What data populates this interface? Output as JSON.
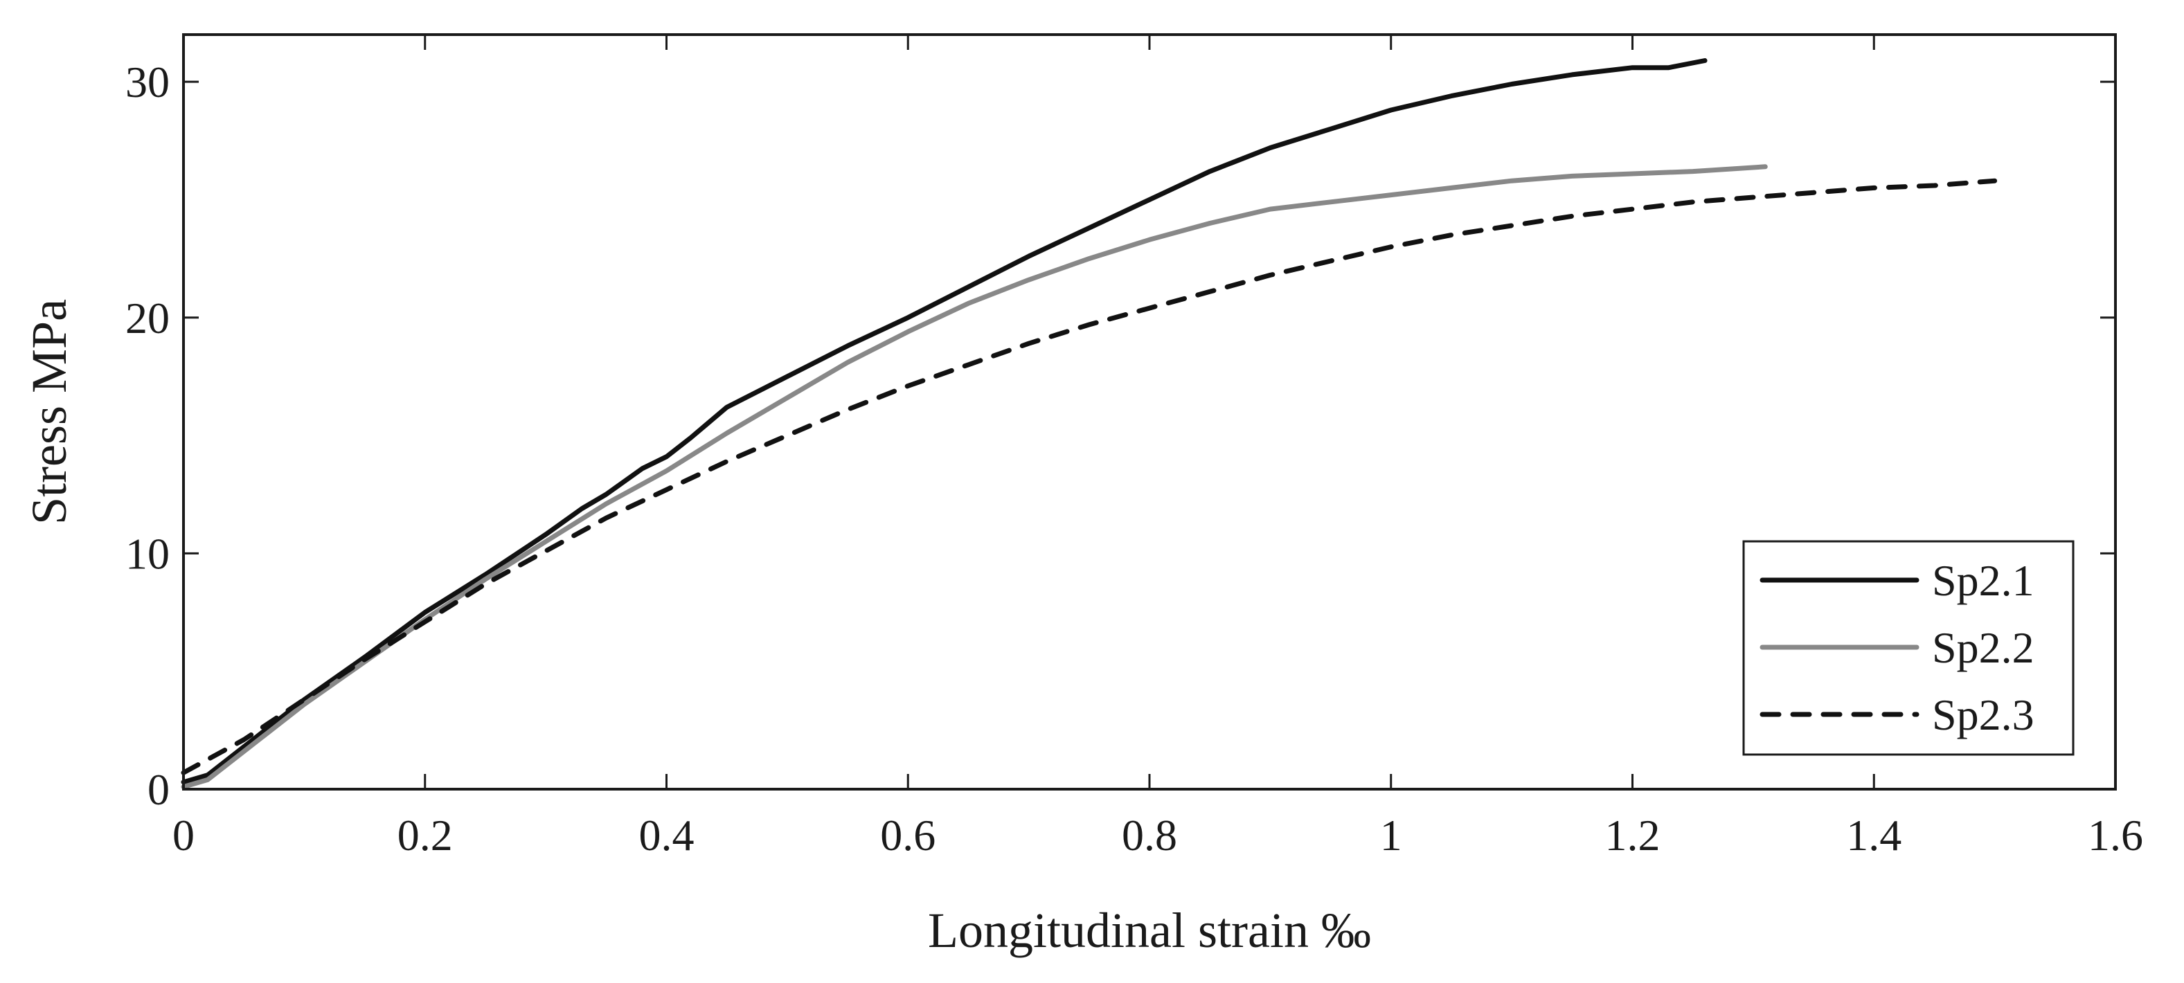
{
  "chart_data": {
    "type": "line",
    "title": "",
    "xlabel": "Longitudinal strain ‰",
    "ylabel": "Stress MPa",
    "xlim": [
      0,
      1.6
    ],
    "ylim": [
      0,
      32
    ],
    "xticks": [
      0,
      0.2,
      0.4,
      0.6,
      0.8,
      1,
      1.2,
      1.4,
      1.6
    ],
    "xtick_labels": [
      "0",
      "0.2",
      "0.4",
      "0.6",
      "0.8",
      "1",
      "1.2",
      "1.4",
      "1.6"
    ],
    "yticks": [
      0,
      10,
      20,
      30
    ],
    "ytick_labels": [
      "0",
      "10",
      "20",
      "30"
    ],
    "grid": false,
    "legend_position": "bottom-right",
    "series": [
      {
        "name": "Sp2.1",
        "color": "#111111",
        "dash": "solid",
        "x": [
          0,
          0.02,
          0.05,
          0.1,
          0.15,
          0.2,
          0.25,
          0.3,
          0.33,
          0.35,
          0.38,
          0.4,
          0.42,
          0.45,
          0.5,
          0.55,
          0.6,
          0.65,
          0.7,
          0.75,
          0.8,
          0.85,
          0.9,
          0.95,
          1.0,
          1.05,
          1.1,
          1.15,
          1.2,
          1.23,
          1.26
        ],
        "y": [
          0.3,
          0.6,
          1.8,
          3.8,
          5.6,
          7.5,
          9.1,
          10.8,
          11.9,
          12.5,
          13.6,
          14.1,
          14.9,
          16.2,
          17.5,
          18.8,
          20.0,
          21.3,
          22.6,
          23.8,
          25.0,
          26.2,
          27.2,
          28.0,
          28.8,
          29.4,
          29.9,
          30.3,
          30.6,
          30.6,
          30.9
        ]
      },
      {
        "name": "Sp2.2",
        "color": "#888888",
        "dash": "solid",
        "x": [
          0.0,
          0.02,
          0.05,
          0.1,
          0.15,
          0.2,
          0.25,
          0.3,
          0.35,
          0.4,
          0.45,
          0.5,
          0.55,
          0.6,
          0.65,
          0.7,
          0.75,
          0.8,
          0.85,
          0.9,
          0.95,
          1.0,
          1.05,
          1.1,
          1.15,
          1.2,
          1.25,
          1.31
        ],
        "y": [
          0.1,
          0.4,
          1.6,
          3.6,
          5.4,
          7.2,
          8.9,
          10.5,
          12.1,
          13.5,
          15.1,
          16.6,
          18.1,
          19.4,
          20.6,
          21.6,
          22.5,
          23.3,
          24.0,
          24.6,
          24.9,
          25.2,
          25.5,
          25.8,
          26.0,
          26.1,
          26.2,
          26.4
        ]
      },
      {
        "name": "Sp2.3",
        "color": "#111111",
        "dash": "dashed",
        "x": [
          0.0,
          0.05,
          0.1,
          0.15,
          0.2,
          0.25,
          0.3,
          0.35,
          0.4,
          0.45,
          0.5,
          0.55,
          0.6,
          0.65,
          0.7,
          0.75,
          0.8,
          0.85,
          0.9,
          0.95,
          1.0,
          1.05,
          1.1,
          1.15,
          1.2,
          1.25,
          1.3,
          1.35,
          1.4,
          1.45,
          1.5
        ],
        "y": [
          0.7,
          2.1,
          3.8,
          5.5,
          7.1,
          8.7,
          10.1,
          11.5,
          12.7,
          13.9,
          15.0,
          16.1,
          17.1,
          18.0,
          18.9,
          19.7,
          20.4,
          21.1,
          21.8,
          22.4,
          23.0,
          23.5,
          23.9,
          24.3,
          24.6,
          24.9,
          25.1,
          25.3,
          25.5,
          25.6,
          25.8
        ]
      }
    ]
  }
}
